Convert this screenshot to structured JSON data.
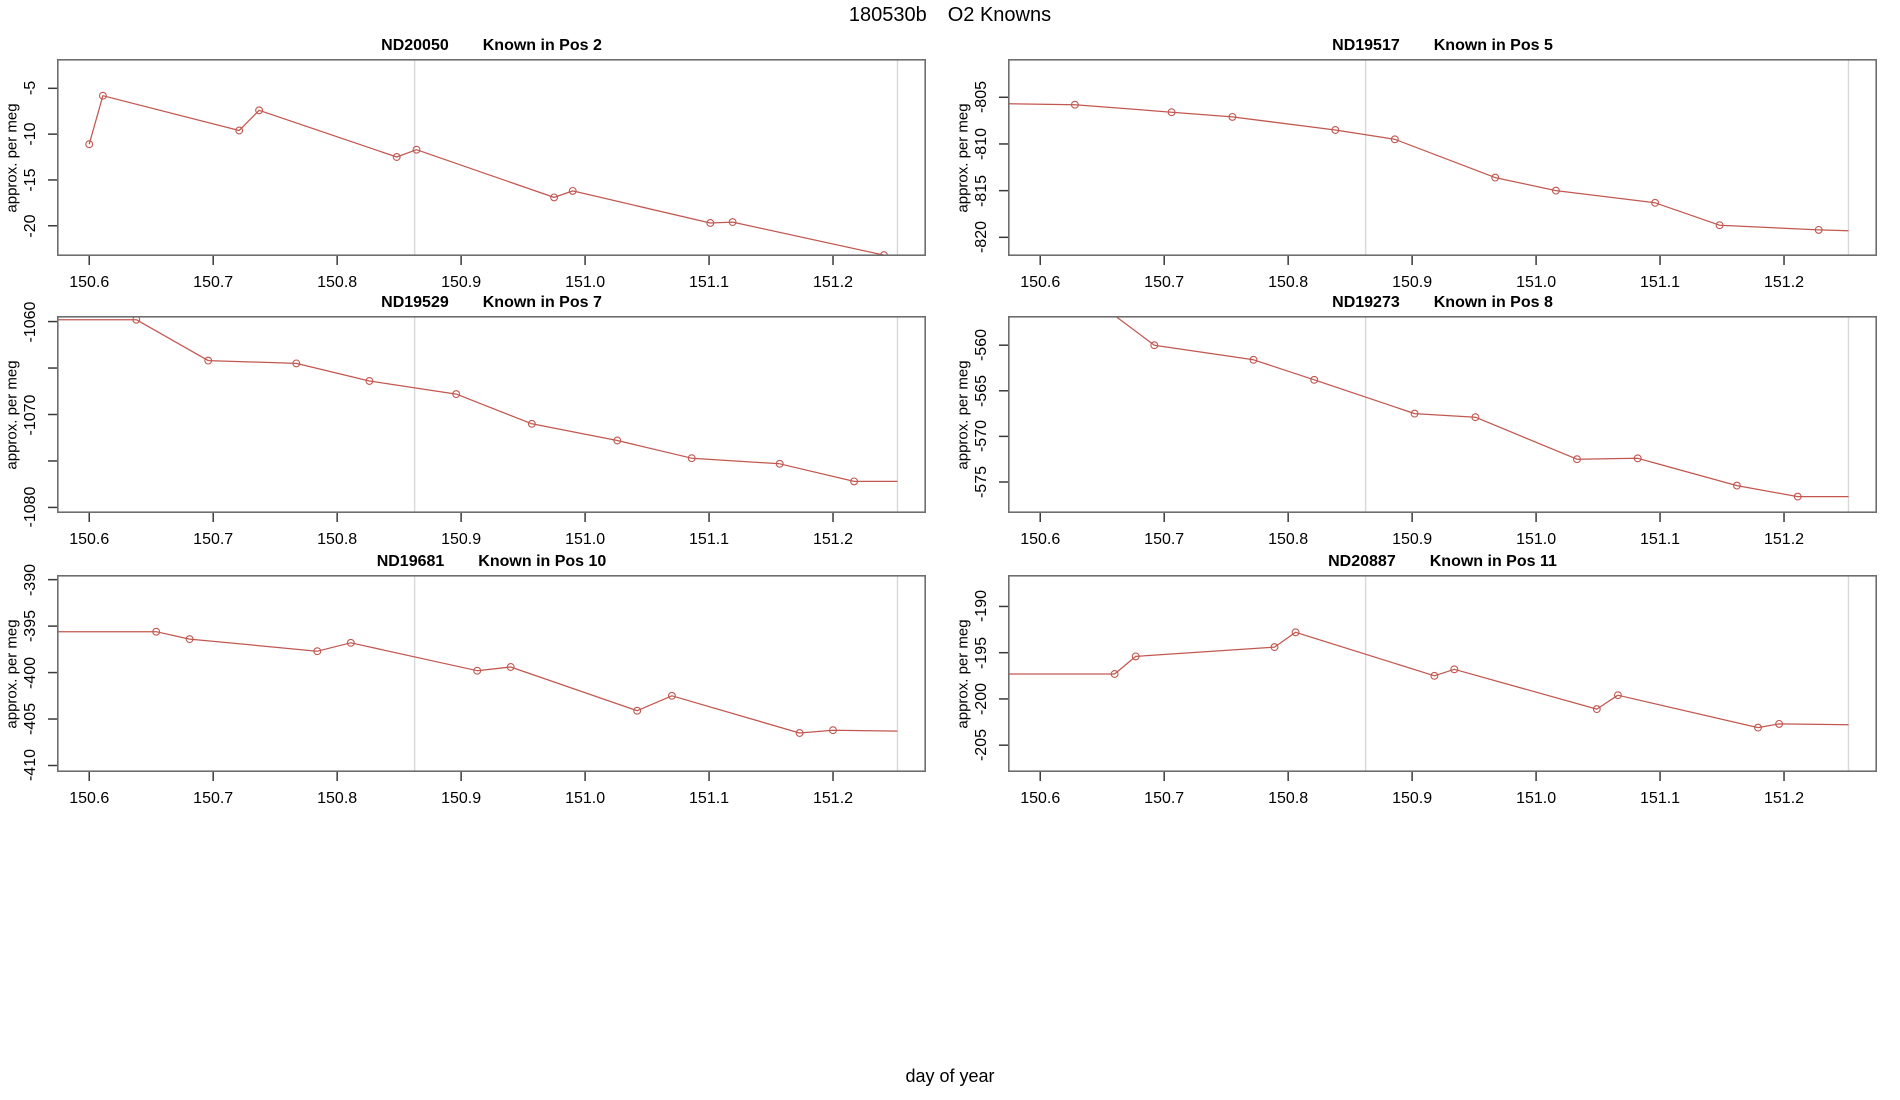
{
  "figure": {
    "run_id": "180530b",
    "subtitle": "O2 Knowns",
    "outer_xlabel": "day of year"
  },
  "colors": {
    "series_line": "#c25750",
    "guide_line": "#d8d8d8",
    "box_border": "#6e6e6e",
    "tick": "#3a3a3a",
    "text": "#000000",
    "background": "#ffffff"
  },
  "chart_data": {
    "type": "line",
    "title": "180530b   O2 Knowns",
    "xlabel": "day of year",
    "ylabel": "approx. per meg",
    "xlim": [
      150.574,
      151.275
    ],
    "xticks": [
      150.6,
      150.7,
      150.8,
      150.9,
      151.0,
      151.1,
      151.2
    ],
    "xtick_labels": [
      "150.6",
      "150.7",
      "150.8",
      "150.9",
      "151.0",
      "151.1",
      "151.2"
    ],
    "guide_vlines": [
      150.8625,
      151.252
    ],
    "grid": false,
    "legend": false,
    "marker_style": "open-circle",
    "plots": [
      {
        "sample_id": "ND20050",
        "pos_label": "Known in Pos 2",
        "ylabel": "approx. per meg",
        "ylim": [
          -23.3,
          -1.8
        ],
        "ytick_values": [
          -5,
          -10,
          -15,
          -20
        ],
        "ytick_labels": [
          "-5",
          "-10",
          "-15",
          "-20"
        ],
        "line_pre": null,
        "line_post": null,
        "markers": [
          [
            150.6,
            -11.1
          ],
          [
            150.611,
            -5.8
          ],
          [
            150.721,
            -9.6
          ],
          [
            150.737,
            -7.4
          ],
          [
            150.848,
            -12.5
          ],
          [
            150.864,
            -11.7
          ],
          [
            150.975,
            -16.9
          ],
          [
            150.99,
            -16.2
          ],
          [
            151.101,
            -19.7
          ],
          [
            151.119,
            -19.6
          ],
          [
            151.241,
            -23.2
          ]
        ]
      },
      {
        "sample_id": "ND19517",
        "pos_label": "Known in Pos 5",
        "ylabel": "approx. per meg",
        "ylim": [
          -822.0,
          -800.9
        ],
        "ytick_values": [
          -805,
          -810,
          -815,
          -820
        ],
        "ytick_labels": [
          "-805",
          "-810",
          "-815",
          "-820"
        ],
        "line_pre": [
          150.574,
          -805.7
        ],
        "line_post": [
          151.252,
          -819.3
        ],
        "markers": [
          [
            150.628,
            -805.8
          ],
          [
            150.706,
            -806.6
          ],
          [
            150.755,
            -807.1
          ],
          [
            150.838,
            -808.5
          ],
          [
            150.886,
            -809.5
          ],
          [
            150.967,
            -813.6
          ],
          [
            151.016,
            -815.0
          ],
          [
            151.096,
            -816.3
          ],
          [
            151.148,
            -818.7
          ],
          [
            151.228,
            -819.2
          ]
        ]
      },
      {
        "sample_id": "ND19529",
        "pos_label": "Known in Pos 7",
        "ylabel": "approx. per meg",
        "ylim": [
          -1080.6,
          -1059.4
        ],
        "ytick_values": [
          -1060,
          -1065,
          -1070,
          -1075,
          -1080
        ],
        "ytick_labels": [
          "-1060",
          "",
          "-1070",
          "",
          "-1080"
        ],
        "line_pre": [
          150.574,
          -1059.8
        ],
        "line_post": [
          151.252,
          -1077.2
        ],
        "markers": [
          [
            150.638,
            -1059.8
          ],
          [
            150.696,
            -1064.2
          ],
          [
            150.767,
            -1064.5
          ],
          [
            150.826,
            -1066.4
          ],
          [
            150.896,
            -1067.8
          ],
          [
            150.957,
            -1071.0
          ],
          [
            151.026,
            -1072.8
          ],
          [
            151.086,
            -1074.7
          ],
          [
            151.157,
            -1075.3
          ],
          [
            151.217,
            -1077.2
          ]
        ]
      },
      {
        "sample_id": "ND19273",
        "pos_label": "Known in Pos 8",
        "ylabel": "approx. per meg",
        "ylim": [
          -578.4,
          -556.8
        ],
        "ytick_values": [
          -560,
          -565,
          -570,
          -575
        ],
        "ytick_labels": [
          "-560",
          "-565",
          "-570",
          "-575"
        ],
        "line_pre": [
          150.574,
          -548.0
        ],
        "line_post": [
          151.252,
          -576.6
        ],
        "markers": [
          [
            150.692,
            -560.0
          ],
          [
            150.772,
            -561.6
          ],
          [
            150.821,
            -563.8
          ],
          [
            150.902,
            -567.5
          ],
          [
            150.951,
            -567.9
          ],
          [
            151.033,
            -572.5
          ],
          [
            151.082,
            -572.4
          ],
          [
            151.162,
            -575.4
          ],
          [
            151.211,
            -576.6
          ]
        ]
      },
      {
        "sample_id": "ND19681",
        "pos_label": "Known in Pos 10",
        "ylabel": "approx. per meg",
        "ylim": [
          -410.7,
          -389.5
        ],
        "ytick_values": [
          -390,
          -395,
          -400,
          -405,
          -410
        ],
        "ytick_labels": [
          "-390",
          "-395",
          "-400",
          "-405",
          "-410"
        ],
        "line_pre": [
          150.574,
          -395.6
        ],
        "line_post": [
          151.252,
          -406.3
        ],
        "markers": [
          [
            150.654,
            -395.6
          ],
          [
            150.681,
            -396.4
          ],
          [
            150.784,
            -397.7
          ],
          [
            150.811,
            -396.8
          ],
          [
            150.913,
            -399.8
          ],
          [
            150.94,
            -399.4
          ],
          [
            151.042,
            -404.1
          ],
          [
            151.07,
            -402.5
          ],
          [
            151.173,
            -406.5
          ],
          [
            151.2,
            -406.2
          ]
        ]
      },
      {
        "sample_id": "ND20887",
        "pos_label": "Known in Pos 11",
        "ylabel": "approx. per meg",
        "ylim": [
          -207.9,
          -186.6
        ],
        "ytick_values": [
          -190,
          -195,
          -200,
          -205
        ],
        "ytick_labels": [
          "-190",
          "-195",
          "-200",
          "-205"
        ],
        "line_pre": [
          150.574,
          -197.3
        ],
        "line_post": [
          151.252,
          -202.8
        ],
        "markers": [
          [
            150.66,
            -197.3
          ],
          [
            150.677,
            -195.4
          ],
          [
            150.789,
            -194.4
          ],
          [
            150.806,
            -192.8
          ],
          [
            150.918,
            -197.5
          ],
          [
            150.934,
            -196.8
          ],
          [
            151.049,
            -201.1
          ],
          [
            151.066,
            -199.6
          ],
          [
            151.179,
            -203.1
          ],
          [
            151.196,
            -202.7
          ]
        ]
      }
    ]
  }
}
